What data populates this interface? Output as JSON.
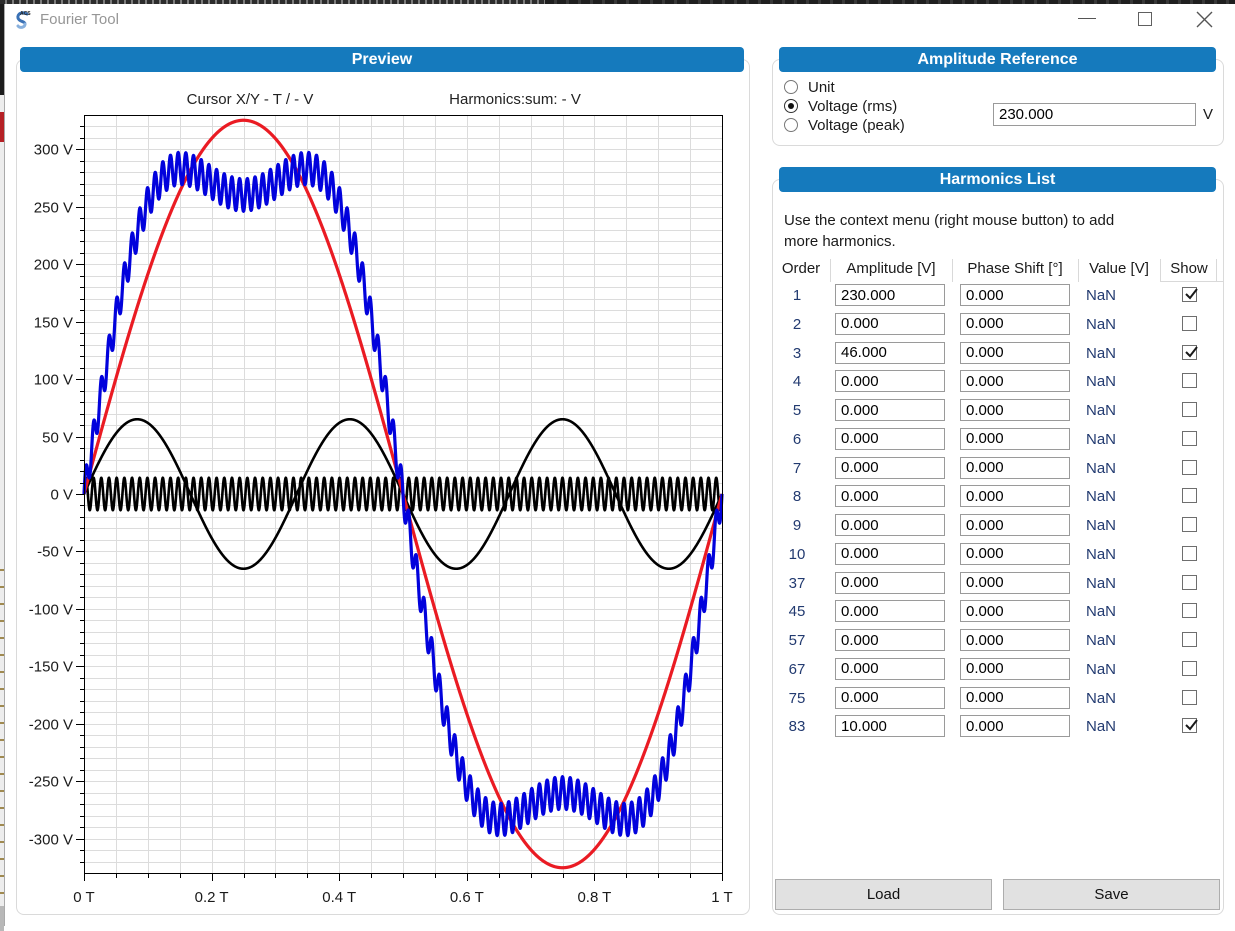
{
  "window": {
    "title": "Fourier Tool",
    "controls": {
      "minimize": "minimize",
      "maximize": "maximize",
      "close": "close"
    }
  },
  "colors": {
    "accent": "#157abd",
    "curve_sum": "#0202dc",
    "curve_fundamental": "#ea1b23",
    "curve_harmonic": "#000000",
    "grid": "#dcdcdc"
  },
  "preview": {
    "header": "Preview",
    "cursor_label": "Cursor X/Y - T / - V",
    "harmonics_label": "Harmonics:sum: - V"
  },
  "chart_data": {
    "type": "line",
    "x_range": [
      0,
      1
    ],
    "y_range": [
      -330,
      330
    ],
    "x_major_step": 0.2,
    "x_minor_step": 0.05,
    "y_major_step": 50,
    "y_minor_step": 10,
    "x_tick_suffix": " T",
    "y_tick_suffix": " V",
    "grid": true,
    "series": [
      {
        "name": "harmonic-3",
        "color": "#000000",
        "width": 2.6,
        "components": [
          [
            3,
            65.05
          ]
        ]
      },
      {
        "name": "harmonic-83",
        "color": "#000000",
        "width": 2.6,
        "components": [
          [
            83,
            14.14
          ]
        ]
      },
      {
        "name": "fundamental",
        "color": "#ea1b23",
        "width": 3.2,
        "components": [
          [
            1,
            325.27
          ]
        ]
      },
      {
        "name": "sum",
        "color": "#0202dc",
        "width": 3.2,
        "components": [
          [
            1,
            325.27
          ],
          [
            3,
            65.05
          ],
          [
            83,
            14.14
          ]
        ]
      }
    ]
  },
  "amplitude_reference": {
    "header": "Amplitude Reference",
    "options": [
      {
        "label": "Unit",
        "selected": false
      },
      {
        "label": "Voltage (rms)",
        "selected": true
      },
      {
        "label": "Voltage (peak)",
        "selected": false
      }
    ],
    "value": "230.000",
    "unit": "V"
  },
  "harmonics_list": {
    "header": "Harmonics List",
    "instructions": [
      "Use the context menu (right mouse button) to add",
      "more harmonics."
    ],
    "columns": [
      "Order",
      "Amplitude [V]",
      "Phase Shift [°]",
      "Value [V]",
      "Show"
    ],
    "rows": [
      {
        "order": "1",
        "amplitude": "230.000",
        "phase": "0.000",
        "value": "NaN",
        "show": true
      },
      {
        "order": "2",
        "amplitude": "0.000",
        "phase": "0.000",
        "value": "NaN",
        "show": false
      },
      {
        "order": "3",
        "amplitude": "46.000",
        "phase": "0.000",
        "value": "NaN",
        "show": true
      },
      {
        "order": "4",
        "amplitude": "0.000",
        "phase": "0.000",
        "value": "NaN",
        "show": false
      },
      {
        "order": "5",
        "amplitude": "0.000",
        "phase": "0.000",
        "value": "NaN",
        "show": false
      },
      {
        "order": "6",
        "amplitude": "0.000",
        "phase": "0.000",
        "value": "NaN",
        "show": false
      },
      {
        "order": "7",
        "amplitude": "0.000",
        "phase": "0.000",
        "value": "NaN",
        "show": false
      },
      {
        "order": "8",
        "amplitude": "0.000",
        "phase": "0.000",
        "value": "NaN",
        "show": false
      },
      {
        "order": "9",
        "amplitude": "0.000",
        "phase": "0.000",
        "value": "NaN",
        "show": false
      },
      {
        "order": "10",
        "amplitude": "0.000",
        "phase": "0.000",
        "value": "NaN",
        "show": false
      },
      {
        "order": "37",
        "amplitude": "0.000",
        "phase": "0.000",
        "value": "NaN",
        "show": false
      },
      {
        "order": "45",
        "amplitude": "0.000",
        "phase": "0.000",
        "value": "NaN",
        "show": false
      },
      {
        "order": "57",
        "amplitude": "0.000",
        "phase": "0.000",
        "value": "NaN",
        "show": false
      },
      {
        "order": "67",
        "amplitude": "0.000",
        "phase": "0.000",
        "value": "NaN",
        "show": false
      },
      {
        "order": "75",
        "amplitude": "0.000",
        "phase": "0.000",
        "value": "NaN",
        "show": false
      },
      {
        "order": "83",
        "amplitude": "10.000",
        "phase": "0.000",
        "value": "NaN",
        "show": true
      }
    ]
  },
  "actions": {
    "load": "Load",
    "save": "Save"
  }
}
